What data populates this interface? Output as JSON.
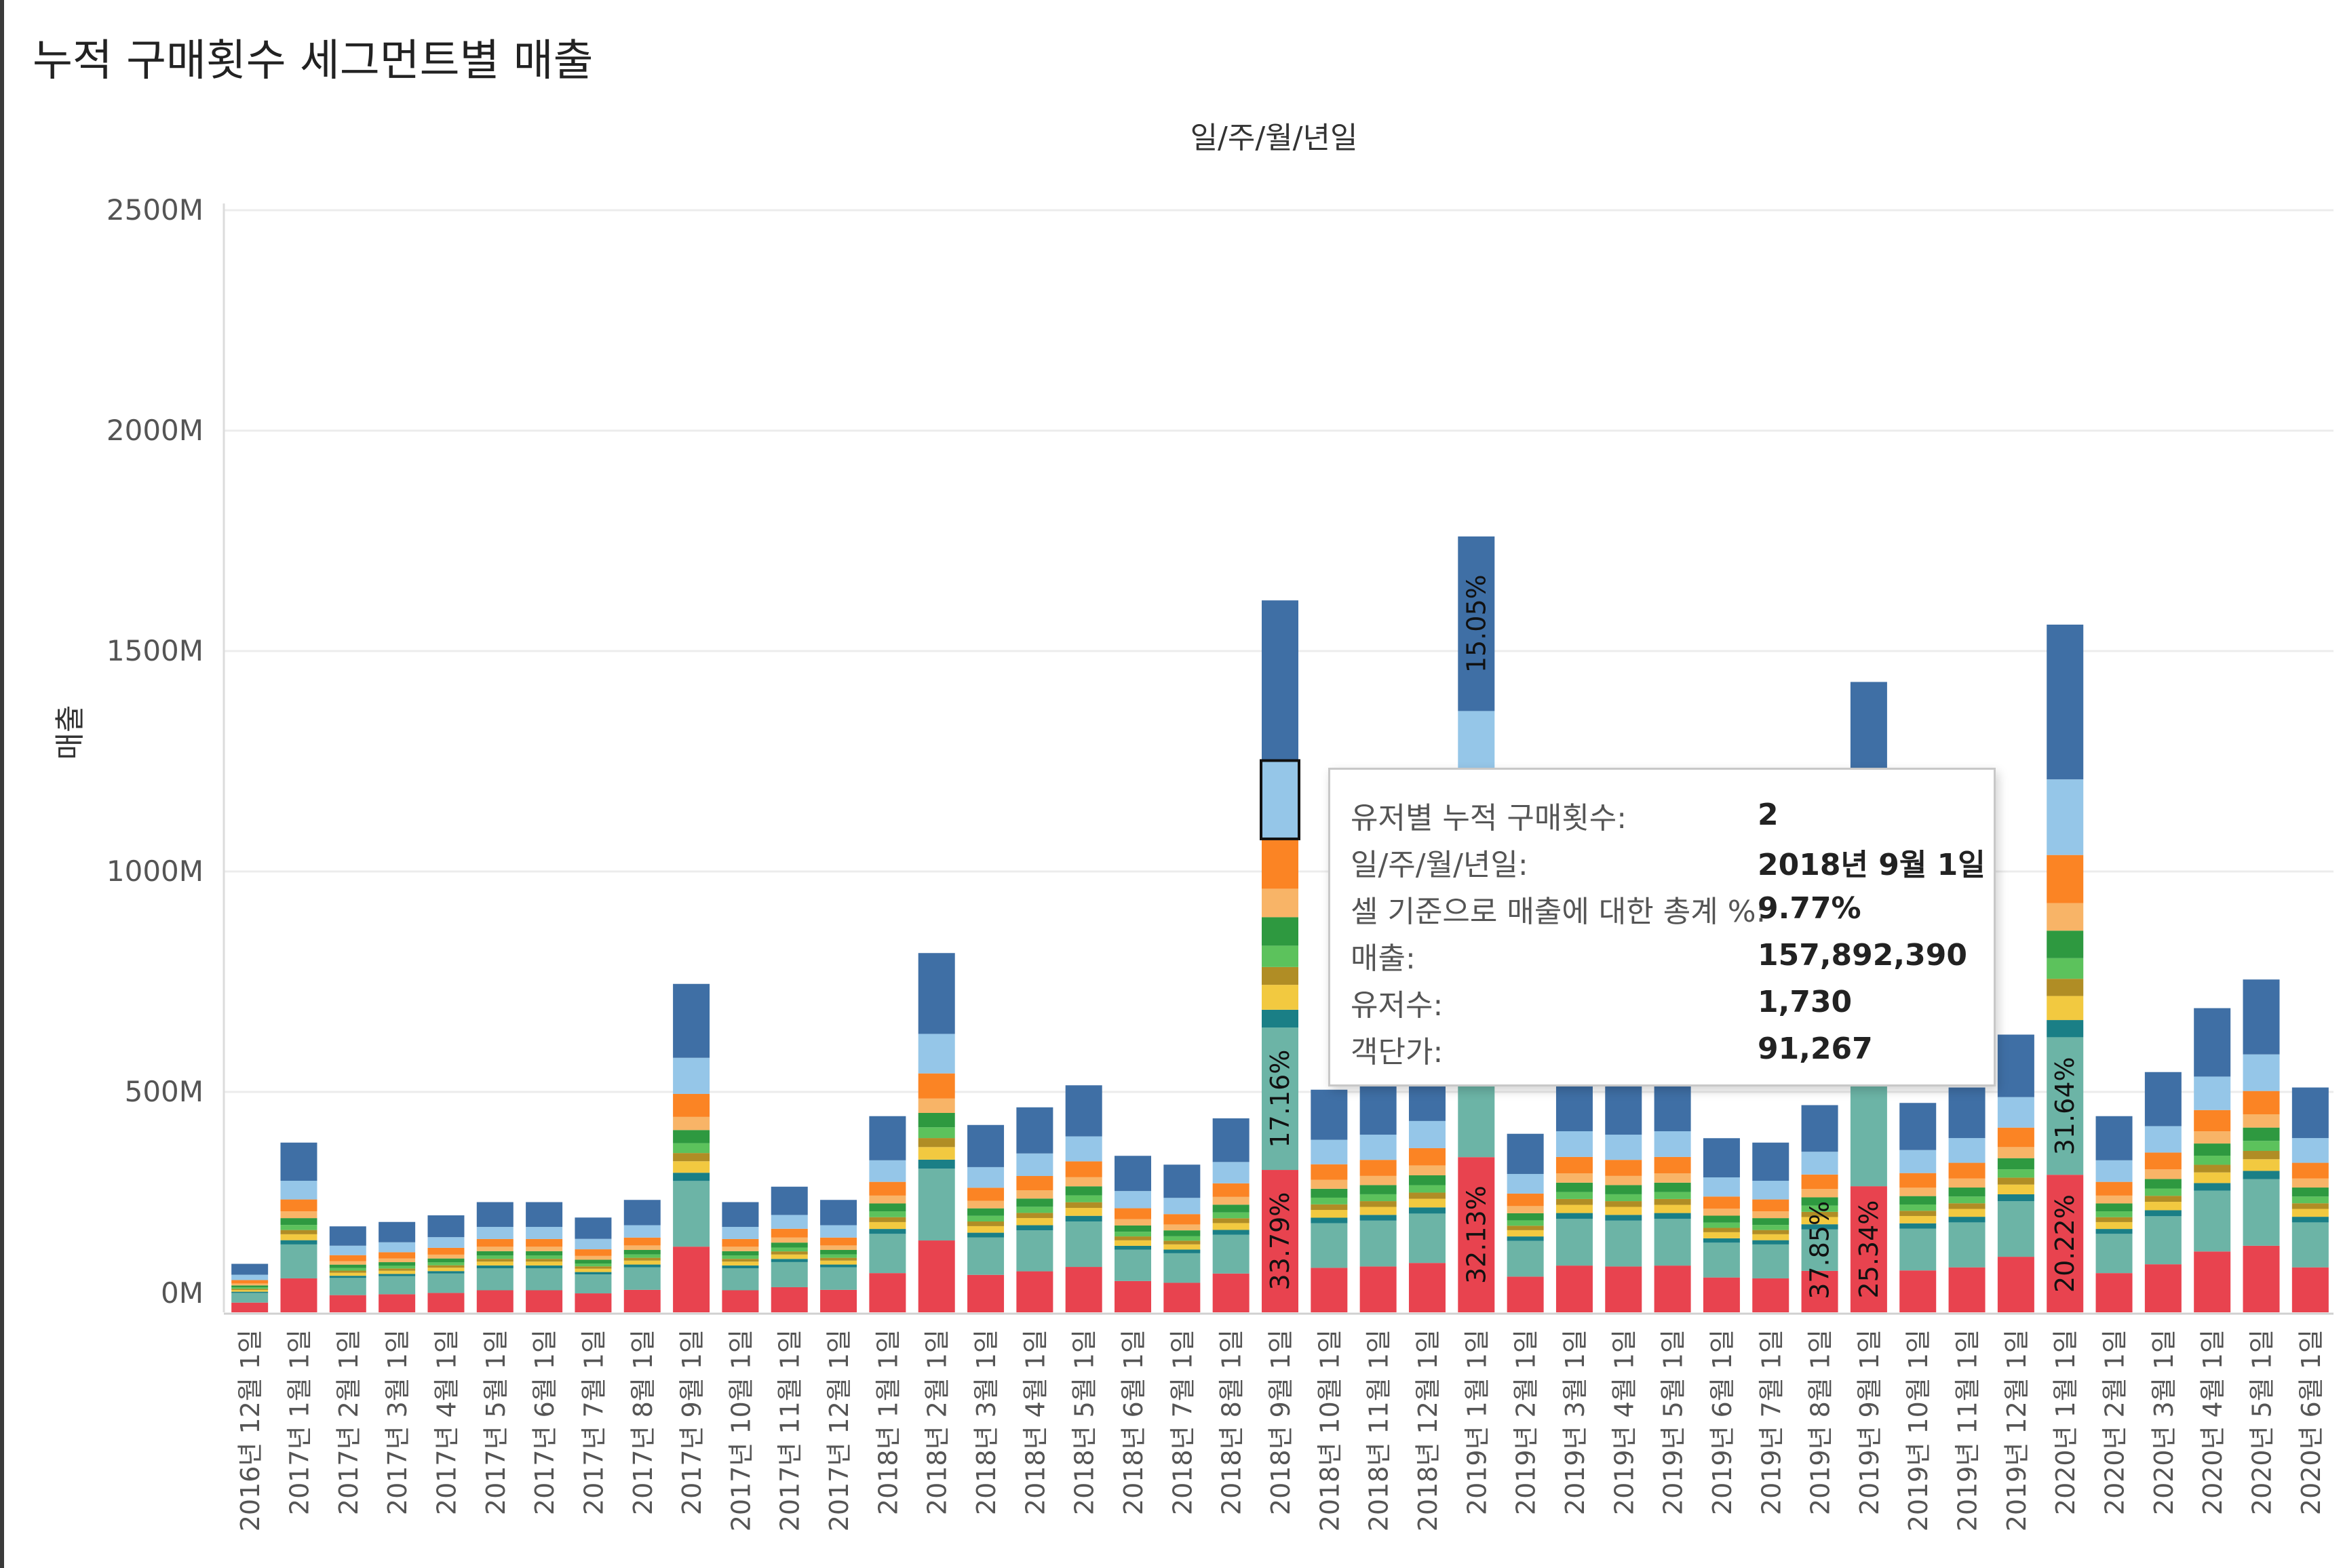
{
  "title": "누적 구매횟수 세그먼트별 매출",
  "chart_data": {
    "type": "bar",
    "stacked": true,
    "xlabel": "일/주/월/년일",
    "ylabel": "매출",
    "ylim": [
      0,
      2500000000
    ],
    "yticks": [
      0,
      500000000,
      1000000000,
      1500000000,
      2000000000,
      2500000000
    ],
    "ytick_labels": [
      "0M",
      "500M",
      "1000M",
      "1500M",
      "2000M",
      "2500M"
    ],
    "grid": true,
    "categories": [
      "2016년 12월 1일",
      "2017년 1월 1일",
      "2017년 2월 1일",
      "2017년 3월 1일",
      "2017년 4월 1일",
      "2017년 5월 1일",
      "2017년 6월 1일",
      "2017년 7월 1일",
      "2017년 8월 1일",
      "2017년 9월 1일",
      "2017년 10월 1일",
      "2017년 11월 1일",
      "2017년 12월 1일",
      "2018년 1월 1일",
      "2018년 2월 1일",
      "2018년 3월 1일",
      "2018년 4월 1일",
      "2018년 5월 1일",
      "2018년 6월 1일",
      "2018년 7월 1일",
      "2018년 8월 1일",
      "2018년 9월 1일",
      "2018년 10월 1일",
      "2018년 11월 1일",
      "2018년 12월 1일",
      "2019년 1월 1일",
      "2019년 2월 1일",
      "2019년 3월 1일",
      "2019년 4월 1일",
      "2019년 5월 1일",
      "2019년 6월 1일",
      "2019년 7월 1일",
      "2019년 8월 1일",
      "2019년 9월 1일",
      "2019년 10월 1일",
      "2019년 11월 1일",
      "2019년 12월 1일",
      "2020년 1월 1일",
      "2020년 2월 1일",
      "2020년 3월 1일",
      "2020년 4월 1일",
      "2020년 5월 1일",
      "2020년 6월 1일"
    ],
    "totals": [
      110,
      385,
      195,
      205,
      220,
      250,
      250,
      215,
      255,
      745,
      250,
      285,
      255,
      445,
      815,
      425,
      465,
      515,
      355,
      335,
      440,
      1615,
      505,
      520,
      560,
      1760,
      405,
      530,
      520,
      530,
      395,
      385,
      470,
      1430,
      475,
      510,
      630,
      1560,
      445,
      545,
      690,
      755,
      510
    ],
    "total_units": "M",
    "segment_colors": [
      "#e8434f",
      "#6cb4a6",
      "#1a7f86",
      "#f2c940",
      "#b08d25",
      "#5cc25c",
      "#2e9940",
      "#f8b467",
      "#fb8424",
      "#95c6e8",
      "#3f6fa5"
    ],
    "segment_shares": [
      0.2,
      0.2,
      0.025,
      0.035,
      0.025,
      0.03,
      0.04,
      0.04,
      0.07,
      0.11,
      0.225
    ],
    "highlighted_segment": {
      "category": "2018년 9월 1일",
      "segment_index": 9,
      "value": 157892390
    },
    "data_labels": [
      {
        "category": "2018년 9월 1일",
        "segment": 0,
        "text": "33.79%"
      },
      {
        "category": "2018년 9월 1일",
        "segment": 1,
        "text": "17.16%"
      },
      {
        "category": "2019년 1월 1일",
        "segment": 0,
        "text": "32.13%"
      },
      {
        "category": "2019년 1월 1일",
        "segment": 10,
        "text": "15.05%"
      },
      {
        "category": "2019년 8월 1일",
        "segment": 1,
        "text": "37.85%"
      },
      {
        "category": "2019년 9월 1일",
        "segment": 0,
        "text": "25.34%"
      },
      {
        "category": "2020년 1월 1일",
        "segment": 0,
        "text": "20.22%"
      },
      {
        "category": "2020년 1월 1일",
        "segment": 1,
        "text": "31.64%"
      }
    ]
  },
  "tooltip": {
    "rows": [
      {
        "label": "유저별 누적 구매횟수:",
        "value": "2"
      },
      {
        "label": "일/주/월/년일:",
        "value": "2018년 9월 1일"
      },
      {
        "label": "셀 기준으로 매출에 대한 총계 %:",
        "value": "9.77%"
      },
      {
        "label": "매출:",
        "value": "157,892,390"
      },
      {
        "label": "유저수:",
        "value": "1,730"
      },
      {
        "label": "객단가:",
        "value": "91,267"
      }
    ]
  }
}
